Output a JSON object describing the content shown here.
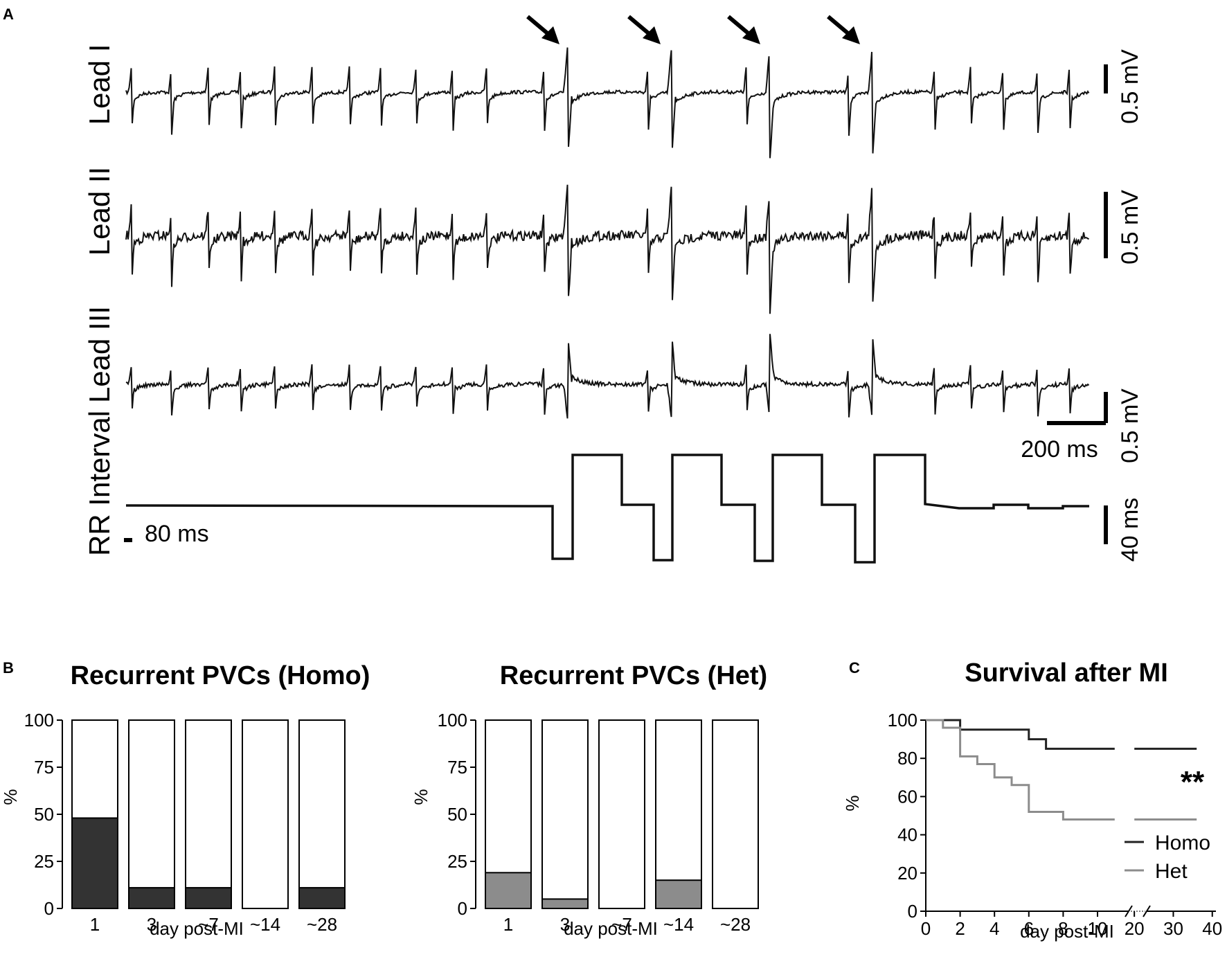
{
  "panel_a": {
    "letter": "A",
    "leads": [
      "Lead I",
      "Lead II",
      "Lead III"
    ],
    "rr_label": "RR Interval",
    "scale_mv": "0.5 mV",
    "scale_time": "200 ms",
    "scale_rr": "40 ms",
    "rr_ref": "80 ms"
  },
  "panel_b": {
    "letter": "B"
  },
  "panel_c": {
    "letter": "C"
  },
  "chart_data": [
    {
      "type": "bar",
      "title": "Recurrent PVCs (Homo)",
      "categories": [
        "1",
        "3",
        "~7",
        "~14",
        "~28"
      ],
      "values": [
        48,
        11,
        11,
        0,
        11
      ],
      "total": 100,
      "xlabel": "day post-MI",
      "ylabel": "%",
      "ylim": [
        0,
        100
      ],
      "yticks": [
        "0",
        "25",
        "50",
        "75",
        "100"
      ],
      "color": "#333333"
    },
    {
      "type": "bar",
      "title": "Recurrent  PVCs (Het)",
      "categories": [
        "1",
        "3",
        "~7",
        "~14",
        "~28"
      ],
      "values": [
        19,
        5,
        0,
        15,
        0
      ],
      "total": 100,
      "xlabel": "day post-MI",
      "ylabel": "%",
      "ylim": [
        0,
        100
      ],
      "yticks": [
        "0",
        "25",
        "50",
        "75",
        "100"
      ],
      "annotation": "*",
      "color": "#8c8c8c"
    },
    {
      "type": "line",
      "title": "Survival after MI",
      "xlabel": "day post-MI",
      "ylabel": "%",
      "ylim": [
        0,
        100
      ],
      "yticks": [
        "0",
        "20",
        "40",
        "60",
        "80",
        "100"
      ],
      "xticks": [
        "0",
        "2",
        "4",
        "6",
        "8",
        "10",
        "20",
        "30",
        "40"
      ],
      "annotation": "**",
      "series": [
        {
          "name": "Homo",
          "color": "#222222",
          "x": [
            0,
            2,
            2,
            6,
            6,
            7,
            7,
            11,
            20,
            36
          ],
          "y": [
            100,
            100,
            95,
            95,
            90,
            90,
            85,
            85,
            85,
            85
          ]
        },
        {
          "name": "Het",
          "color": "#8c8c8c",
          "x": [
            0,
            1,
            1,
            2,
            2,
            3,
            3,
            4,
            4,
            5,
            5,
            6,
            6,
            8,
            8,
            11,
            20,
            36
          ],
          "y": [
            100,
            100,
            96,
            96,
            81,
            81,
            77,
            77,
            70,
            70,
            66,
            66,
            52,
            52,
            48,
            48,
            48,
            48
          ]
        }
      ]
    }
  ]
}
